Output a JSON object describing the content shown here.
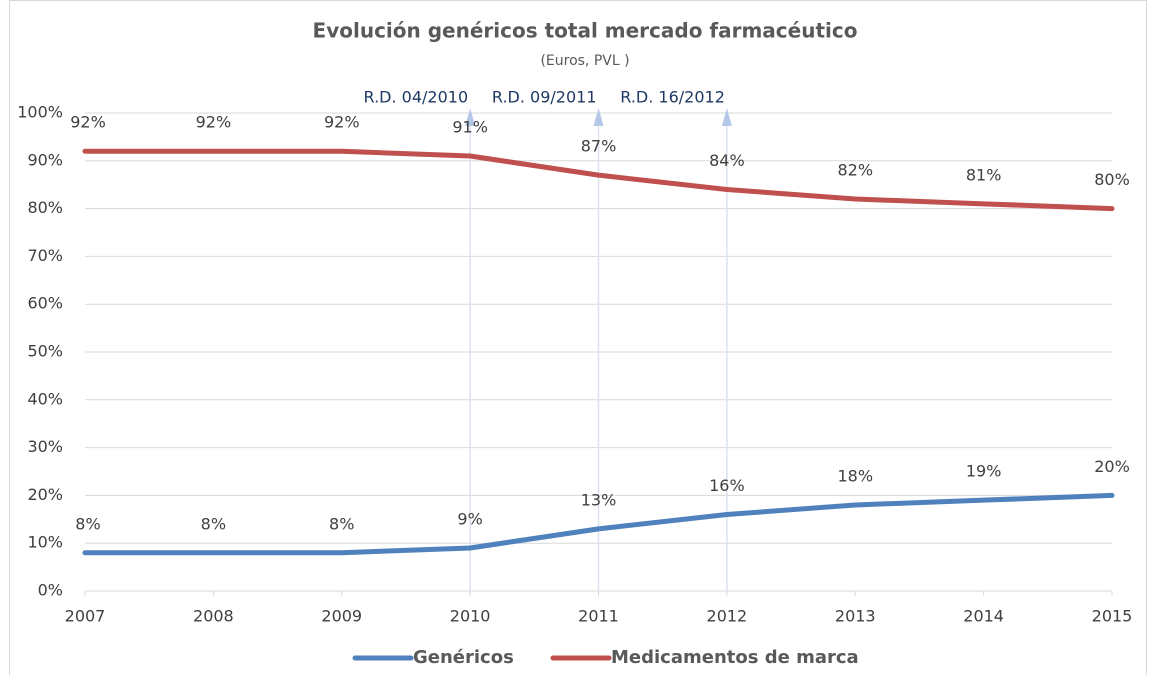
{
  "chart_data": {
    "type": "line",
    "title": "Evolución genéricos total mercado farmacéutico",
    "subtitle": "(Euros, PVL )",
    "x": [
      2007,
      2008,
      2009,
      2010,
      2011,
      2012,
      2013,
      2014,
      2015
    ],
    "xlim": [
      2007,
      2015
    ],
    "xticks": [
      2007,
      2008,
      2009,
      2010,
      2011,
      2012,
      2013,
      2014,
      2015
    ],
    "ylim": [
      0,
      100
    ],
    "yticks": [
      {
        "value": 0,
        "label": "0%"
      },
      {
        "value": 10,
        "label": "10%"
      },
      {
        "value": 20,
        "label": "20%"
      },
      {
        "value": 30,
        "label": "30%"
      },
      {
        "value": 40,
        "label": "40%"
      },
      {
        "value": 50,
        "label": "50%"
      },
      {
        "value": 60,
        "label": "60%"
      },
      {
        "value": 70,
        "label": "70%"
      },
      {
        "value": 80,
        "label": "80%"
      },
      {
        "value": 90,
        "label": "90%"
      },
      {
        "value": 100,
        "label": "100%"
      }
    ],
    "grid": true,
    "legend": "bottom",
    "series": [
      {
        "name": "Genéricos",
        "color": "#4f81bd",
        "values": [
          8,
          8,
          8,
          9,
          13,
          16,
          18,
          19,
          20
        ],
        "value_labels": [
          "8%",
          "8%",
          "8%",
          "9%",
          "13%",
          "16%",
          "18%",
          "19%",
          "20%"
        ]
      },
      {
        "name": "Medicamentos de marca",
        "color": "#c0504d",
        "values": [
          92,
          92,
          92,
          91,
          87,
          84,
          82,
          81,
          80
        ],
        "value_labels": [
          "92%",
          "92%",
          "92%",
          "91%",
          "87%",
          "84%",
          "82%",
          "81%",
          "80%"
        ]
      }
    ],
    "annotations": [
      {
        "text": "R.D. 04/2010",
        "x": 2010
      },
      {
        "text": "R.D. 09/2011",
        "x": 2011
      },
      {
        "text": "R.D. 16/2012",
        "x": 2012
      }
    ]
  }
}
